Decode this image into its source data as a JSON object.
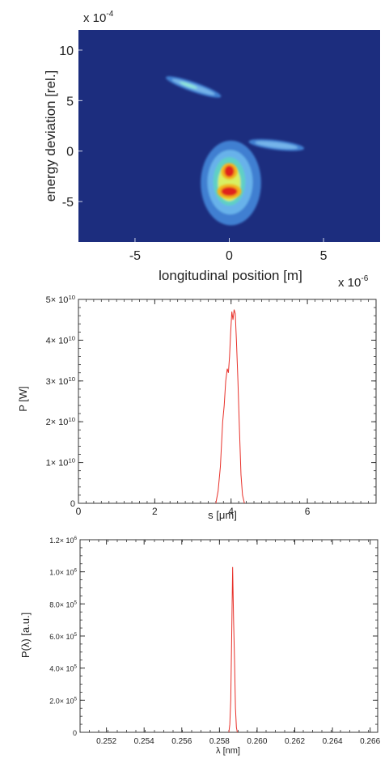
{
  "chart_data": [
    {
      "type": "heatmap",
      "title": "",
      "xlabel": "longitudinal position [m]",
      "ylabel": "energy deviation [rel.]",
      "x_multiplier": "x 10",
      "x_exponent": "-6",
      "y_multiplier": "x 10",
      "y_exponent": "-4",
      "xlim": [
        -8,
        8
      ],
      "ylim": [
        -9,
        12
      ],
      "xticks": [
        -5,
        0,
        5
      ],
      "xtick_labels": [
        "-5",
        "0",
        "5"
      ],
      "yticks": [
        -5,
        0,
        5,
        10
      ],
      "ytick_labels": [
        "-5",
        "0",
        "5",
        "10"
      ],
      "colormap": "jet",
      "background_color": "#1c2d7e",
      "features": [
        {
          "kind": "streak",
          "x": [
            -3.2,
            -0.6
          ],
          "y": [
            7.2,
            5.5
          ],
          "peak_level": 0.5
        },
        {
          "kind": "streak",
          "x": [
            1.2,
            3.8
          ],
          "y": [
            0.9,
            0.3
          ],
          "peak_level": 0.25
        },
        {
          "kind": "core",
          "x": 0.0,
          "y": -2.0,
          "peak_level": 1.0
        },
        {
          "kind": "core",
          "x": 0.0,
          "y": -4.0,
          "peak_level": 1.0
        }
      ]
    },
    {
      "type": "line",
      "title": "",
      "xlabel": "s [μm]",
      "ylabel": "P [W]",
      "xlim": [
        0,
        7.8
      ],
      "ylim": [
        0,
        50000000000
      ],
      "xticks": [
        0,
        2,
        4,
        6
      ],
      "xtick_labels": [
        "0",
        "2",
        "4",
        "6"
      ],
      "yticks": [
        0,
        10000000000,
        20000000000,
        30000000000,
        40000000000,
        50000000000
      ],
      "ytick_labels": [
        "0",
        "1× 10",
        "2× 10",
        "3× 10",
        "4× 10",
        "5× 10"
      ],
      "ytick_exponents": [
        "",
        "10",
        "10",
        "10",
        "10",
        "10"
      ],
      "grid": false,
      "series": [
        {
          "color": "#e8312a",
          "x": [
            3.6,
            3.66,
            3.72,
            3.78,
            3.82,
            3.86,
            3.9,
            3.93,
            3.96,
            3.99,
            4.02,
            4.05,
            4.08,
            4.11,
            4.14,
            4.18,
            4.22,
            4.26,
            4.3,
            4.35
          ],
          "y": [
            0,
            3000000000,
            9000000000,
            20000000000,
            24000000000,
            30000000000,
            33000000000,
            32000000000,
            36000000000,
            42000000000,
            47000000000,
            45000000000,
            47500000000,
            46500000000,
            40000000000,
            30000000000,
            18000000000,
            7000000000,
            2000000000,
            0
          ]
        }
      ]
    },
    {
      "type": "line",
      "title": "",
      "xlabel": "λ [nm]",
      "ylabel": "P(λ) [a.u.]",
      "xlim": [
        0.2506,
        0.2664
      ],
      "ylim": [
        0,
        1200000
      ],
      "xticks": [
        0.252,
        0.254,
        0.256,
        0.258,
        0.26,
        0.262,
        0.264,
        0.266
      ],
      "xtick_labels": [
        "0.252",
        "0.254",
        "0.256",
        "0.258",
        "0.260",
        "0.262",
        "0.264",
        "0.266"
      ],
      "yticks": [
        0,
        200000,
        400000,
        600000,
        800000,
        1000000,
        1200000
      ],
      "ytick_labels": [
        "0",
        "2.0× 10",
        "4.0× 10",
        "6.0× 10",
        "8.0× 10",
        "1.0× 10",
        "1.2× 10"
      ],
      "ytick_exponents": [
        "",
        "5",
        "5",
        "5",
        "5",
        "6",
        "6"
      ],
      "grid": false,
      "series": [
        {
          "color": "#e8312a",
          "x": [
            0.2585,
            0.25855,
            0.2586,
            0.25865,
            0.2587,
            0.25875,
            0.2588,
            0.25885,
            0.2589,
            0.25895
          ],
          "y": [
            0,
            50000,
            200000,
            600000,
            1030000,
            700000,
            450000,
            150000,
            30000,
            0
          ]
        }
      ]
    }
  ]
}
